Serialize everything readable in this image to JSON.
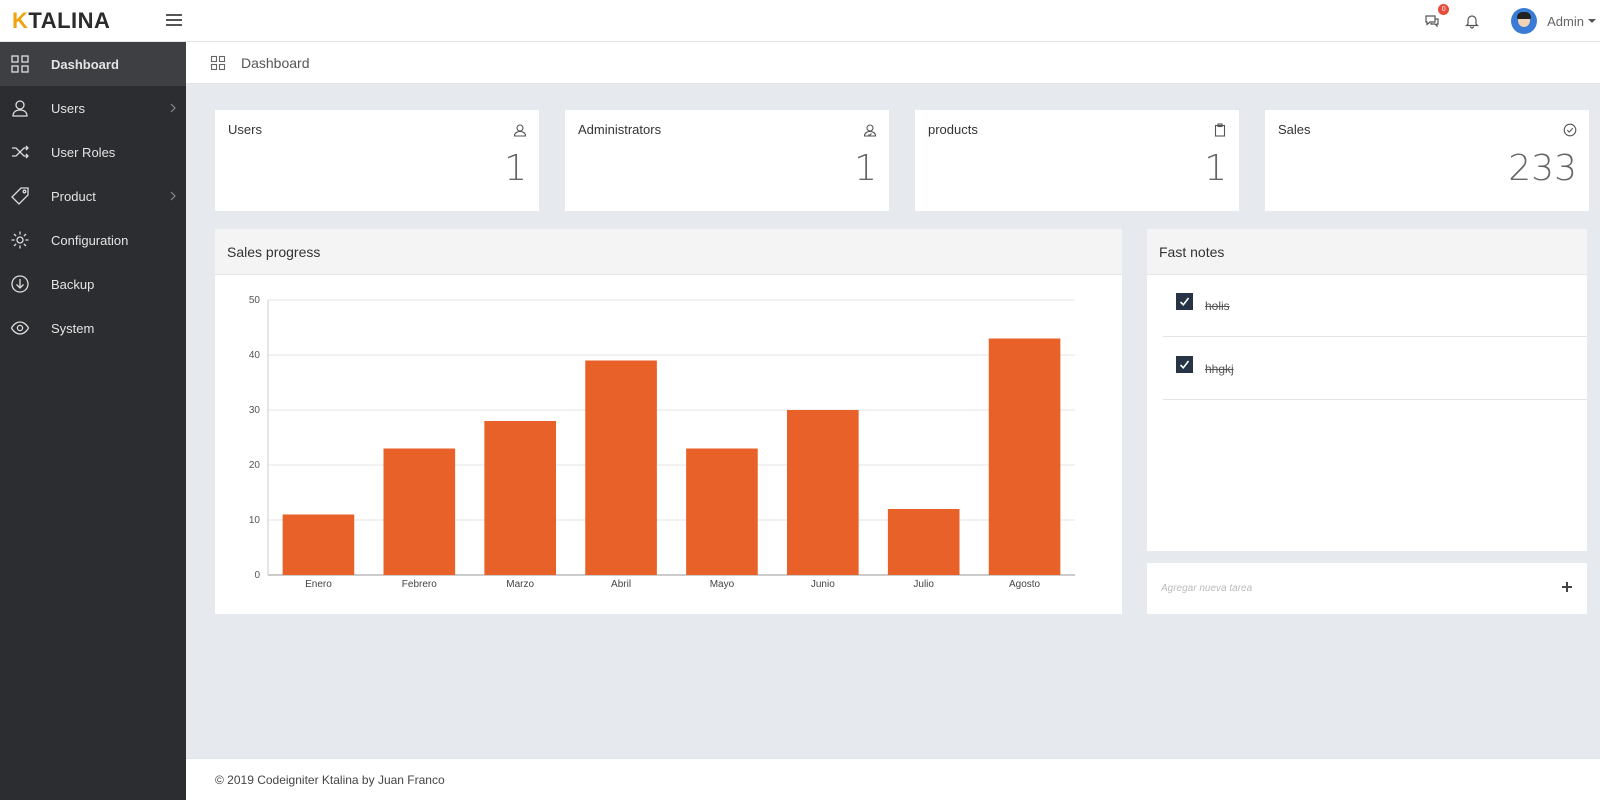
{
  "brand": {
    "first_letter": "K",
    "rest": "TALINA"
  },
  "header": {
    "messages_badge": "0",
    "user_name": "Admin"
  },
  "sidebar": {
    "items": [
      {
        "label": "Dashboard",
        "icon": "dashboard-grid-icon",
        "active": true,
        "has_submenu": false
      },
      {
        "label": "Users",
        "icon": "user-icon",
        "active": false,
        "has_submenu": true
      },
      {
        "label": "User Roles",
        "icon": "shuffle-icon",
        "active": false,
        "has_submenu": false
      },
      {
        "label": "Product",
        "icon": "tag-icon",
        "active": false,
        "has_submenu": true
      },
      {
        "label": "Configuration",
        "icon": "gear-icon",
        "active": false,
        "has_submenu": false
      },
      {
        "label": "Backup",
        "icon": "download-circle-icon",
        "active": false,
        "has_submenu": false
      },
      {
        "label": "System",
        "icon": "eye-icon",
        "active": false,
        "has_submenu": false
      }
    ]
  },
  "breadcrumb": {
    "title": "Dashboard"
  },
  "stats": [
    {
      "label": "Users",
      "value": "1",
      "icon": "user-outline-icon"
    },
    {
      "label": "Administrators",
      "value": "1",
      "icon": "admin-user-icon"
    },
    {
      "label": "products",
      "value": "1",
      "icon": "clipboard-icon"
    },
    {
      "label": "Sales",
      "value": "233",
      "icon": "check-circle-icon"
    }
  ],
  "sales_panel": {
    "title": "Sales progress"
  },
  "chart_data": {
    "type": "bar",
    "categories": [
      "Enero",
      "Febrero",
      "Marzo",
      "Abril",
      "Mayo",
      "Junio",
      "Julio",
      "Agosto"
    ],
    "values": [
      11,
      23,
      28,
      39,
      23,
      30,
      12,
      43
    ],
    "ylim": [
      0,
      50
    ],
    "yticks": [
      0,
      10,
      20,
      30,
      40,
      50
    ],
    "grid": true,
    "color": "#e86128"
  },
  "notes_panel": {
    "title": "Fast notes",
    "notes": [
      {
        "text": "holis",
        "done": true
      },
      {
        "text": "hhgkj",
        "done": true
      }
    ]
  },
  "add_task": {
    "placeholder": "Agregar nueva tarea"
  },
  "footer": {
    "text": "© 2019 Codeigniter Ktalina by Juan Franco"
  },
  "colors": {
    "sidebar_bg": "#2b2d30",
    "accent_orange": "#e86128",
    "brand_yellow": "#f0a30a",
    "checkbox_bg": "#263445"
  }
}
